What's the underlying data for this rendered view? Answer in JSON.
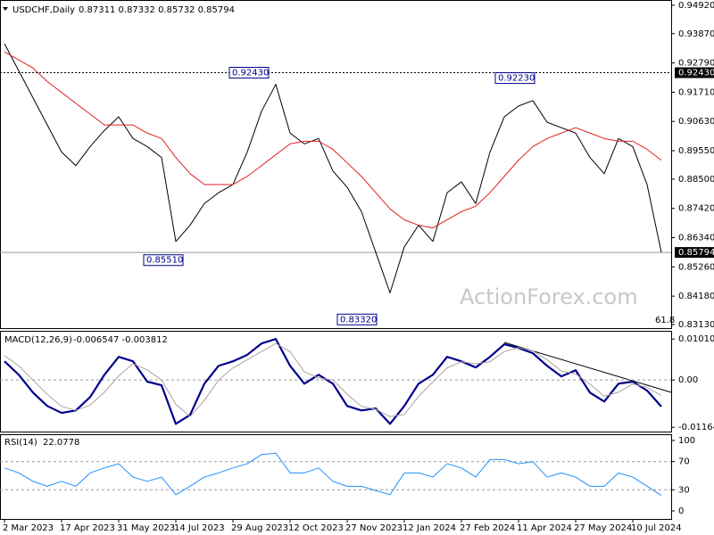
{
  "chart_data": [
    {
      "type": "line",
      "title": "USDCHF,Daily",
      "subtitle": "0.87311 0.87332 0.85732 0.85794",
      "watermark": "ActionForex.com",
      "fib_label": 61.8,
      "categories": [
        "2 Mar 2023",
        null,
        null,
        null,
        "17 Apr 2023",
        null,
        null,
        null,
        "31 May 2023",
        null,
        null,
        null,
        "14 Jul 2023",
        null,
        null,
        null,
        "29 Aug 2023",
        null,
        null,
        null,
        "12 Oct 2023",
        null,
        null,
        null,
        "27 Nov 2023",
        null,
        null,
        null,
        "12 Jan 2024",
        null,
        null,
        null,
        "27 Feb 2024",
        null,
        null,
        null,
        "11 Apr 2024",
        null,
        null,
        null,
        "27 May 2024",
        null,
        null,
        null,
        "10 Jul 2024",
        null,
        null
      ],
      "series": [
        {
          "name": "USDCHF",
          "color": "#000000",
          "width": 1,
          "values": [
            0.935,
            0.925,
            0.915,
            0.905,
            0.895,
            0.89,
            0.897,
            0.903,
            0.908,
            0.9,
            0.897,
            0.893,
            0.862,
            0.868,
            0.876,
            0.88,
            0.883,
            0.895,
            0.91,
            0.92,
            0.902,
            0.898,
            0.9,
            0.888,
            0.882,
            0.873,
            0.858,
            0.843,
            0.86,
            0.868,
            0.862,
            0.88,
            0.884,
            0.876,
            0.895,
            0.908,
            0.912,
            0.914,
            0.906,
            0.904,
            0.902,
            0.893,
            0.887,
            0.9,
            0.897,
            0.883,
            0.85794
          ]
        },
        {
          "name": "MA",
          "color": "#e02020",
          "width": 1,
          "values": [
            0.932,
            0.929,
            0.926,
            0.921,
            0.917,
            0.913,
            0.909,
            0.905,
            0.905,
            0.905,
            0.902,
            0.9,
            0.893,
            0.887,
            0.883,
            0.883,
            0.883,
            0.886,
            0.89,
            0.894,
            0.898,
            0.899,
            0.899,
            0.896,
            0.891,
            0.886,
            0.88,
            0.874,
            0.87,
            0.868,
            0.867,
            0.87,
            0.873,
            0.875,
            0.88,
            0.886,
            0.892,
            0.897,
            0.9,
            0.902,
            0.904,
            0.902,
            0.9,
            0.899,
            0.899,
            0.896,
            0.892
          ]
        }
      ],
      "ylim": [
        0.83,
        0.9508
      ],
      "yticks": [
        {
          "value": 0.9492,
          "label": "0.94920"
        },
        {
          "value": 0.9387,
          "label": "0.93870"
        },
        {
          "value": 0.9279,
          "label": "0.92790"
        },
        {
          "value": 0.9171,
          "label": "0.91710"
        },
        {
          "value": 0.9063,
          "label": "0.90630"
        },
        {
          "value": 0.8955,
          "label": "0.89550"
        },
        {
          "value": 0.885,
          "label": "0.88500"
        },
        {
          "value": 0.8742,
          "label": "0.87420"
        },
        {
          "value": 0.8634,
          "label": "0.86340"
        },
        {
          "value": 0.8526,
          "label": "0.85260"
        },
        {
          "value": 0.8418,
          "label": "0.84180"
        },
        {
          "value": 0.8313,
          "label": "0.83130"
        }
      ],
      "levels": [
        {
          "value": 0.9243,
          "label": "0.92430",
          "style": "dotted"
        },
        {
          "value": 0.85794,
          "label": "0.85794",
          "style": "solid"
        }
      ],
      "annotations": [
        {
          "value": 0.9243,
          "label": "0.92430"
        },
        {
          "value": 0.8551,
          "label": "0.85510"
        },
        {
          "value": 0.8332,
          "label": "0.83320"
        },
        {
          "value": 0.9223,
          "label": "0.92230"
        }
      ]
    },
    {
      "type": "line",
      "title": "MACD(12,26,9)",
      "subtitle": "-0.006547 -0.003812",
      "series": [
        {
          "name": "MACD",
          "color": "#00008b",
          "width": 2.2,
          "values": [
            0.0046,
            0.0013,
            -0.0031,
            -0.0064,
            -0.0081,
            -0.0075,
            -0.0042,
            0.0013,
            0.0057,
            0.0046,
            -0.0004,
            -0.0013,
            -0.0108,
            -0.0086,
            -0.0009,
            0.0035,
            0.0046,
            0.0062,
            0.009,
            0.0101,
            0.0035,
            -0.0009,
            0.0013,
            -0.0009,
            -0.0064,
            -0.0075,
            -0.007,
            -0.0108,
            -0.0064,
            -0.0009,
            0.0013,
            0.0057,
            0.0046,
            0.0031,
            0.0057,
            0.0088,
            0.0079,
            0.0066,
            0.0035,
            0.0009,
            0.0024,
            -0.0031,
            -0.0053,
            -0.0009,
            -0.0004,
            -0.0026,
            -0.006547
          ]
        },
        {
          "name": "Signal",
          "color": "#b0a0a0",
          "width": 1,
          "values": [
            0.006,
            0.0035,
            0.0,
            -0.0035,
            -0.0065,
            -0.0075,
            -0.0062,
            -0.003,
            0.001,
            0.004,
            0.0025,
            0.0,
            -0.006,
            -0.009,
            -0.005,
            0.0,
            0.003,
            0.005,
            0.007,
            0.009,
            0.007,
            0.002,
            0.0005,
            0.0,
            -0.0035,
            -0.0065,
            -0.0072,
            -0.009,
            -0.0085,
            -0.004,
            -0.0005,
            0.003,
            0.0045,
            0.004,
            0.0045,
            0.007,
            0.008,
            0.0072,
            0.005,
            0.0022,
            0.0015,
            -0.001,
            -0.004,
            -0.003,
            -0.001,
            -0.0018,
            -0.003812
          ]
        }
      ],
      "ylim": [
        -0.0127,
        0.0119
      ],
      "yticks": [
        0.010101,
        {
          "value": 0,
          "label": "0.00"
        },
        -0.011645
      ],
      "dashed": [
        0
      ]
    },
    {
      "type": "line",
      "title": "RSI(14)",
      "subtitle": "22.0778",
      "series": [
        {
          "name": "RSI",
          "color": "#1e90ff",
          "width": 1,
          "values": [
            61,
            54,
            42,
            35,
            42,
            35,
            54,
            61,
            67,
            48,
            42,
            48,
            23,
            35,
            48,
            54,
            61,
            67,
            80,
            82,
            54,
            54,
            61,
            42,
            35,
            35,
            29,
            23,
            54,
            54,
            48,
            67,
            61,
            48,
            73,
            73,
            67,
            70,
            48,
            54,
            48,
            35,
            35,
            54,
            48,
            35,
            22.0778
          ]
        }
      ],
      "ylim": [
        -11.4,
        107.6
      ],
      "yticks": [
        100,
        70,
        30,
        0
      ],
      "dashed": [
        70,
        30
      ]
    }
  ]
}
